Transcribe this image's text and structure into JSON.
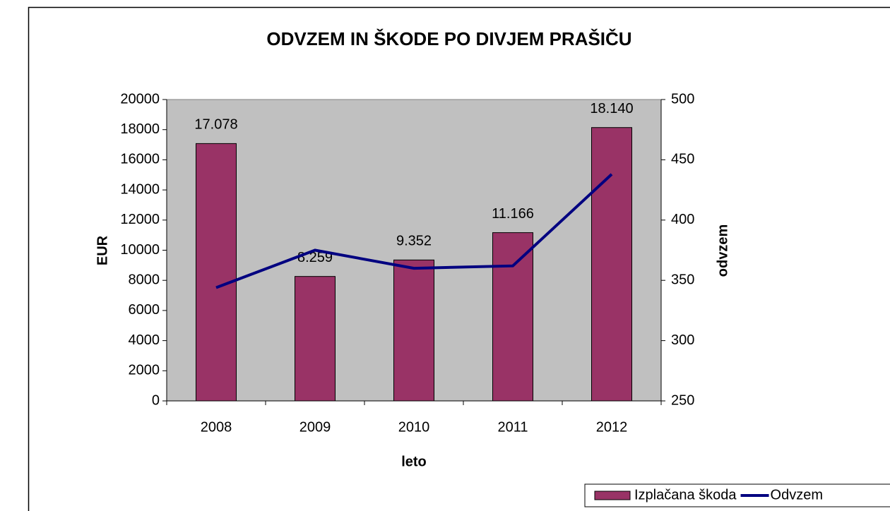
{
  "chart_data": {
    "type": "bar",
    "title": "ODVZEM IN ŠKODE PO DIVJEM PRAŠIČU",
    "x_label": "leto",
    "y_label": "EUR",
    "y2_label": "odvzem",
    "categories": [
      "2008",
      "2009",
      "2010",
      "2011",
      "2012"
    ],
    "series": [
      {
        "name": "Izplačana škoda",
        "color": "#993366",
        "values": [
          17078,
          8259,
          9352,
          11166,
          18140
        ],
        "value_labels": [
          "17.078",
          "8.259",
          "9.352",
          "11.166",
          "18.140"
        ]
      },
      {
        "name": "Odvzem",
        "type": "line",
        "axis": "y2",
        "color": "#000080",
        "values": [
          344,
          375,
          360,
          362,
          438
        ]
      }
    ],
    "ylim": [
      0,
      20000
    ],
    "yticks": [
      0,
      2000,
      4000,
      6000,
      8000,
      10000,
      12000,
      14000,
      16000,
      18000,
      20000
    ],
    "y2lim": [
      250,
      500
    ],
    "y2ticks": [
      250,
      300,
      350,
      400,
      450,
      500
    ],
    "plot_background": "#c0c0c0",
    "legend": "bottom-right"
  }
}
